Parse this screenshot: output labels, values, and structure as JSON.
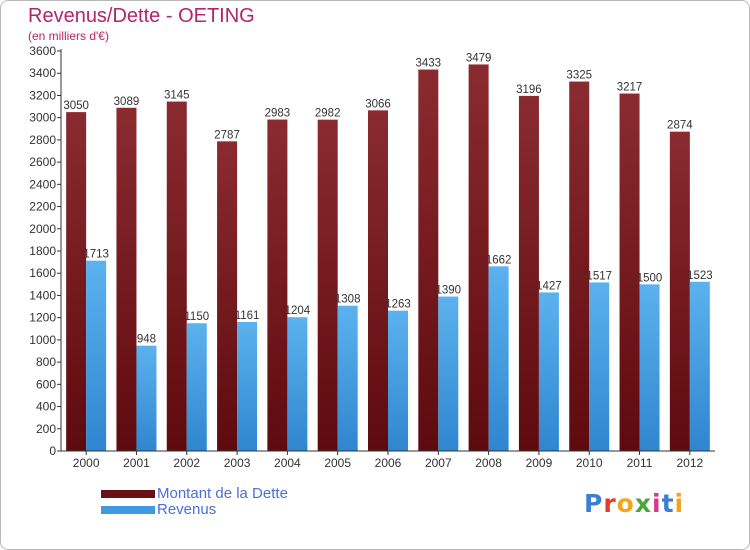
{
  "title": "Revenus/Dette - OETING",
  "subtitle": "(en milliers d'€)",
  "colors": {
    "title": "#b5246b",
    "dette": "#7a1f24",
    "revenus": "#3f9ae0",
    "legend_text": "#4a6fd6"
  },
  "legend": [
    {
      "label": "Montant de la Dette",
      "color": "#6a0f14"
    },
    {
      "label": "Revenus",
      "color": "#3f9ae0"
    }
  ],
  "logo": {
    "text": "Proxiti"
  },
  "chart_data": {
    "type": "bar",
    "title": "Revenus/Dette - OETING",
    "subtitle": "(en milliers d'€)",
    "categories": [
      "2000",
      "2001",
      "2002",
      "2003",
      "2004",
      "2005",
      "2006",
      "2007",
      "2008",
      "2009",
      "2010",
      "2011",
      "2012"
    ],
    "series": [
      {
        "name": "Montant de la Dette",
        "values": [
          3050,
          3089,
          3145,
          2787,
          2983,
          2982,
          3066,
          3433,
          3479,
          3196,
          3325,
          3217,
          2874
        ]
      },
      {
        "name": "Revenus",
        "values": [
          1713,
          948,
          1150,
          1161,
          1204,
          1308,
          1263,
          1390,
          1662,
          1427,
          1517,
          1500,
          1523
        ]
      }
    ],
    "ylim": [
      0,
      3600
    ],
    "yticks": [
      0,
      200,
      400,
      600,
      800,
      1000,
      1200,
      1400,
      1600,
      1800,
      2000,
      2200,
      2400,
      2600,
      2800,
      3000,
      3200,
      3400,
      3600
    ],
    "grid": false,
    "legend_position": "bottom-left"
  }
}
